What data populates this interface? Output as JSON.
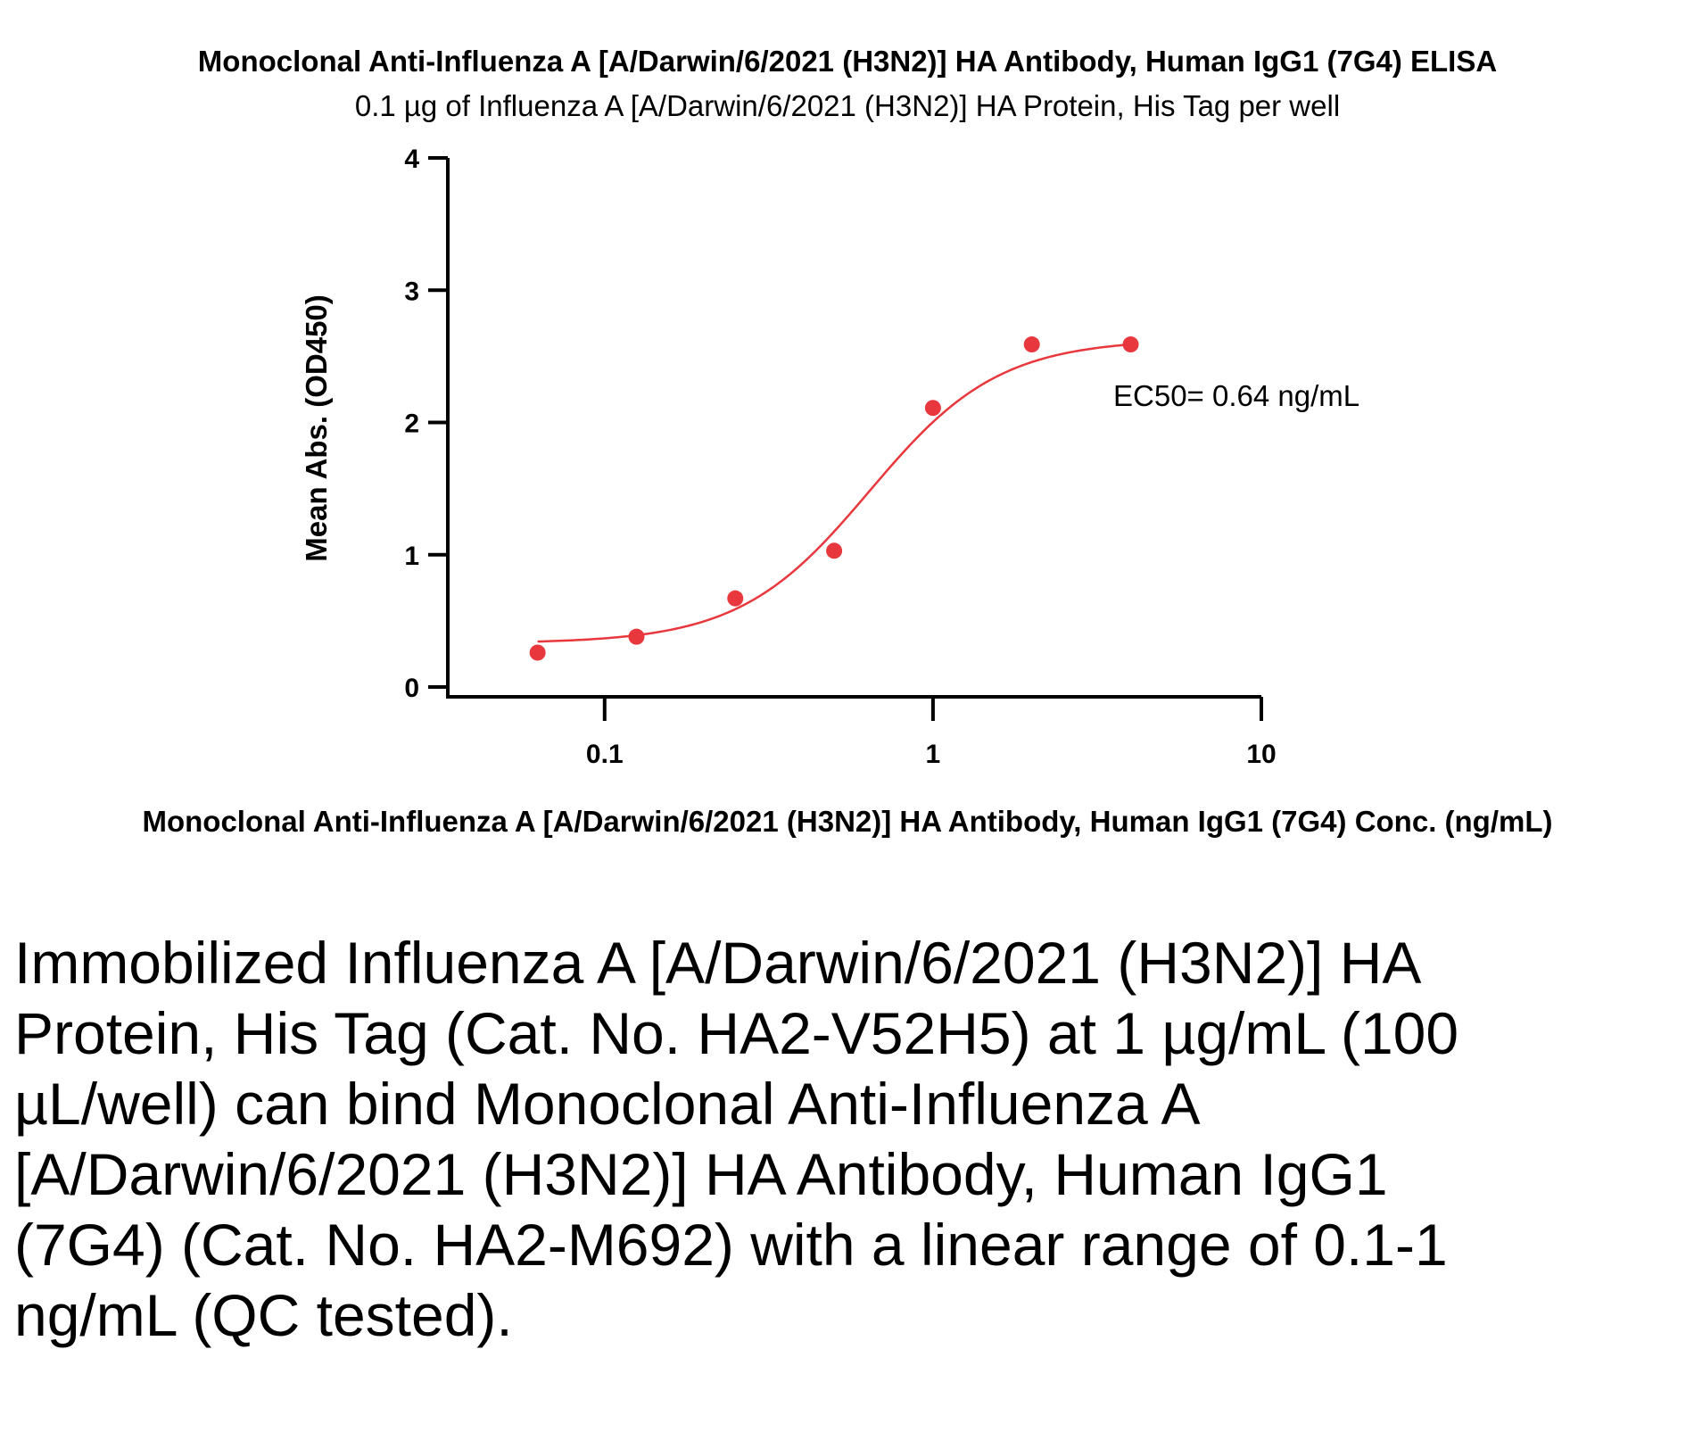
{
  "chart_data": {
    "type": "scatter",
    "title": "Monoclonal Anti-Influenza A [A/Darwin/6/2021 (H3N2)] HA Antibody, Human IgG1 (7G4) ELISA",
    "subtitle": "0.1 µg of Influenza A [A/Darwin/6/2021 (H3N2)] HA Protein, His Tag per well",
    "xlabel": "Monoclonal Anti-Influenza A [A/Darwin/6/2021 (H3N2)] HA Antibody, Human IgG1 (7G4) Conc. (ng/mL)",
    "ylabel": "Mean Abs. (OD450)",
    "x_scale": "log",
    "xlim": [
      0.0333,
      10
    ],
    "ylim": [
      0,
      4
    ],
    "x_ticks": [
      {
        "value": 0.1,
        "label": "0.1"
      },
      {
        "value": 1,
        "label": "1"
      },
      {
        "value": 10,
        "label": "10"
      }
    ],
    "y_ticks": [
      {
        "value": 0,
        "label": "0"
      },
      {
        "value": 1,
        "label": "1"
      },
      {
        "value": 2,
        "label": "2"
      },
      {
        "value": 3,
        "label": "3"
      },
      {
        "value": 4,
        "label": "4"
      }
    ],
    "series": [
      {
        "color": "#e8383d",
        "x": [
          0.0625,
          0.125,
          0.25,
          0.5,
          1,
          2,
          4
        ],
        "y": [
          0.26,
          0.38,
          0.67,
          1.03,
          2.11,
          2.59,
          2.59
        ]
      }
    ],
    "fit_curve": {
      "model": "4PL",
      "bottom": 0.33,
      "top": 2.63,
      "ec50": 0.64,
      "hill": 2.2,
      "x_range": [
        0.0625,
        4
      ]
    },
    "annotations": [
      {
        "text": "EC50= 0.64 ng/mL"
      }
    ],
    "grid": false,
    "legend": "none"
  },
  "description": "Immobilized Influenza A [A/Darwin/6/2021 (H3N2)] HA Protein, His Tag (Cat. No. HA2-V52H5) at 1 µg/mL (100 µL/well) can bind Monoclonal Anti-Influenza A [A/Darwin/6/2021 (H3N2)] HA Antibody, Human IgG1 (7G4) (Cat. No. HA2-M692) with a linear range of 0.1-1 ng/mL (QC tested)."
}
